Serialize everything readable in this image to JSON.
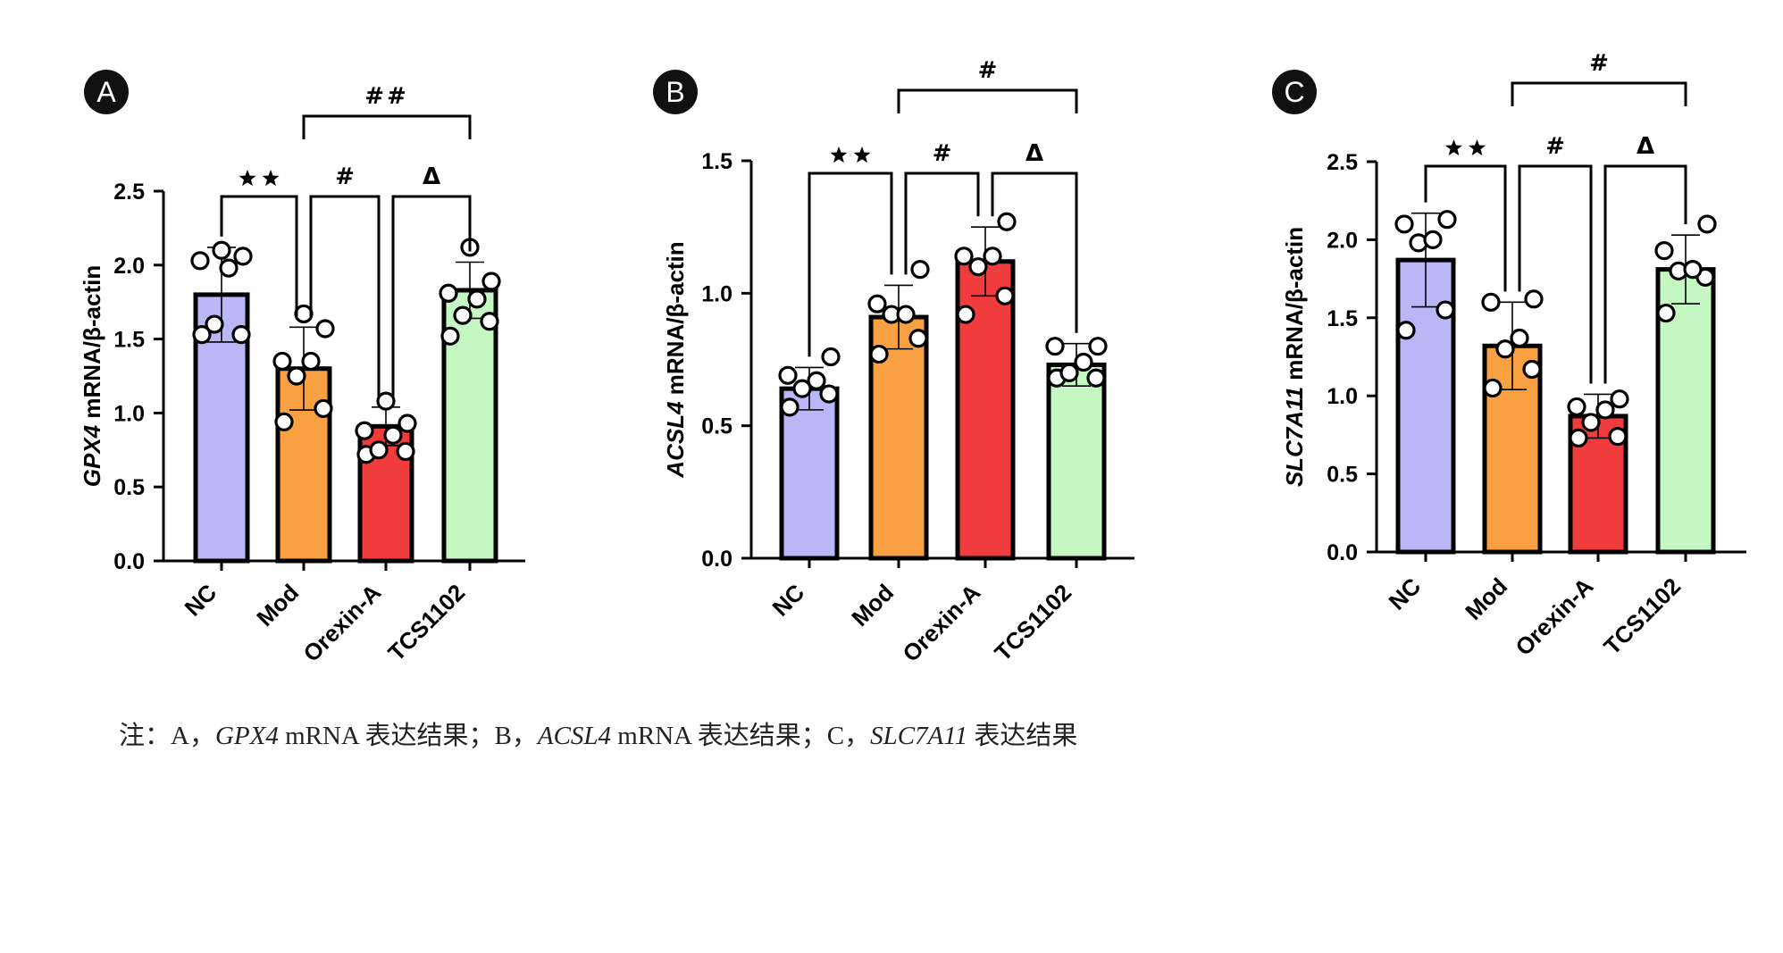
{
  "chart_data": [
    {
      "type": "bar",
      "panel": "A",
      "categories": [
        "NC",
        "Mod",
        "Orexin-A",
        "TCS1102"
      ],
      "colors": [
        "#b9b7f6",
        "#f9a043",
        "#f03c3c",
        "#c4f7c1"
      ],
      "values": [
        1.8,
        1.3,
        0.91,
        1.83
      ],
      "errors": [
        0.32,
        0.28,
        0.13,
        0.19
      ],
      "points": [
        [
          1.53,
          1.53,
          1.6,
          1.98,
          2.03,
          2.06,
          2.1
        ],
        [
          0.94,
          1.03,
          1.25,
          1.35,
          1.35,
          1.57,
          1.67
        ],
        [
          0.72,
          0.74,
          0.75,
          0.85,
          0.88,
          0.93,
          1.08
        ],
        [
          1.52,
          1.62,
          1.66,
          1.77,
          1.81,
          1.89,
          2.12
        ]
      ],
      "ylabel_gene": "GPX4",
      "ylabel_rest": " mRNA/β-actin",
      "ylim": [
        0,
        2.5
      ],
      "yticks": [
        "0.0",
        "0.5",
        "1.0",
        "1.5",
        "2.0",
        "2.5"
      ],
      "comparisons": [
        {
          "from": 0,
          "to": 1,
          "label": "**",
          "level": 0
        },
        {
          "from": 1,
          "to": 2,
          "label": "#",
          "level": 0
        },
        {
          "from": 2,
          "to": 3,
          "label": "Δ",
          "level": 0
        },
        {
          "from": 1,
          "to": 3,
          "label": "##",
          "level": 1
        }
      ]
    },
    {
      "type": "bar",
      "panel": "B",
      "categories": [
        "NC",
        "Mod",
        "Orexin-A",
        "TCS1102"
      ],
      "colors": [
        "#b9b7f6",
        "#f9a043",
        "#f03c3c",
        "#c4f7c1"
      ],
      "values": [
        0.64,
        0.91,
        1.12,
        0.73
      ],
      "errors": [
        0.08,
        0.12,
        0.13,
        0.08
      ],
      "points": [
        [
          0.57,
          0.62,
          0.64,
          0.67,
          0.69,
          0.76
        ],
        [
          0.77,
          0.83,
          0.92,
          0.92,
          0.96,
          1.09
        ],
        [
          0.92,
          0.99,
          1.1,
          1.14,
          1.14,
          1.27
        ],
        [
          0.68,
          0.68,
          0.7,
          0.74,
          0.8,
          0.8
        ]
      ],
      "ylabel_gene": "ACSL4",
      "ylabel_rest": " mRNA/β-actin",
      "ylim": [
        0,
        1.5
      ],
      "yticks": [
        "0.0",
        "0.5",
        "1.0",
        "1.5"
      ],
      "comparisons": [
        {
          "from": 0,
          "to": 1,
          "label": "**",
          "level": 0
        },
        {
          "from": 1,
          "to": 2,
          "label": "#",
          "level": 0
        },
        {
          "from": 2,
          "to": 3,
          "label": "Δ",
          "level": 0
        },
        {
          "from": 1,
          "to": 3,
          "label": "#",
          "level": 1
        }
      ]
    },
    {
      "type": "bar",
      "panel": "C",
      "categories": [
        "NC",
        "Mod",
        "Orexin-A",
        "TCS1102"
      ],
      "colors": [
        "#b9b7f6",
        "#f9a043",
        "#f03c3c",
        "#c4f7c1"
      ],
      "values": [
        1.87,
        1.32,
        0.87,
        1.81
      ],
      "errors": [
        0.3,
        0.28,
        0.14,
        0.22
      ],
      "points": [
        [
          1.42,
          1.55,
          1.98,
          2.0,
          2.1,
          2.13
        ],
        [
          1.05,
          1.17,
          1.3,
          1.37,
          1.6,
          1.62
        ],
        [
          0.73,
          0.74,
          0.83,
          0.91,
          0.93,
          0.98
        ],
        [
          1.53,
          1.76,
          1.8,
          1.81,
          1.93,
          2.1
        ]
      ],
      "ylabel_gene": "SLC7A11",
      "ylabel_rest": " mRNA/β-actin",
      "ylim": [
        0,
        2.5
      ],
      "yticks": [
        "0.0",
        "0.5",
        "1.0",
        "1.5",
        "2.0",
        "2.5"
      ],
      "comparisons": [
        {
          "from": 0,
          "to": 1,
          "label": "**",
          "level": 0
        },
        {
          "from": 1,
          "to": 2,
          "label": "#",
          "level": 0
        },
        {
          "from": 2,
          "to": 3,
          "label": "Δ",
          "level": 0
        },
        {
          "from": 1,
          "to": 3,
          "label": "#",
          "level": 1
        }
      ]
    }
  ],
  "caption": {
    "prefix": "注：A，",
    "gene_a": "GPX4",
    "part_a": " mRNA 表达结果；B，",
    "gene_b": "ACSL4",
    "part_b": " mRNA 表达结果；C，",
    "gene_c": "SLC7A11",
    "part_c": " 表达结果"
  }
}
